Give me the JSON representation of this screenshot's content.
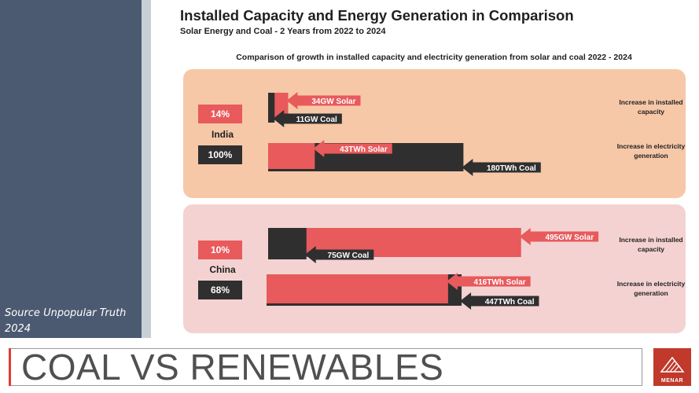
{
  "source": "Source  Unpopular Truth 2024",
  "title": "Installed Capacity and Energy Generation in Comparison",
  "subtitle": "Solar Energy and Coal - 2 Years from 2022 to 2024",
  "footer": {
    "text": "COAL VS RENEWABLES",
    "logo_text": "MENAR"
  },
  "colors": {
    "solar": "#e85a5c",
    "coal": "#2f2f2f",
    "india_bg": "#f6c8a8",
    "china_bg": "#f4d2d2"
  },
  "chart_data": {
    "type": "bar",
    "title": "Comparison of growth in installed capacity and electricity generation from solar and coal 2022 - 2024",
    "metric_labels": [
      "Increase in installed capacity",
      "Increase in electricity generation"
    ],
    "countries": [
      {
        "name": "India",
        "capacity_pct": "14%",
        "generation_pct": "100%",
        "capacity": {
          "solar_label": "34GW Solar",
          "solar_value": 34,
          "coal_label": "11GW Coal",
          "coal_value": 11
        },
        "generation": {
          "solar_label": "43TWh Solar",
          "solar_value": 43,
          "coal_label": "180TWh Coal",
          "coal_value": 180
        }
      },
      {
        "name": "China",
        "capacity_pct": "10%",
        "generation_pct": "68%",
        "capacity": {
          "solar_label": "495GW Solar",
          "solar_value": 495,
          "coal_label": "75GW Coal",
          "coal_value": 75
        },
        "generation": {
          "solar_label": "416TWh Solar",
          "solar_value": 416,
          "coal_label": "447TWh Coal",
          "coal_value": 447
        }
      }
    ]
  }
}
